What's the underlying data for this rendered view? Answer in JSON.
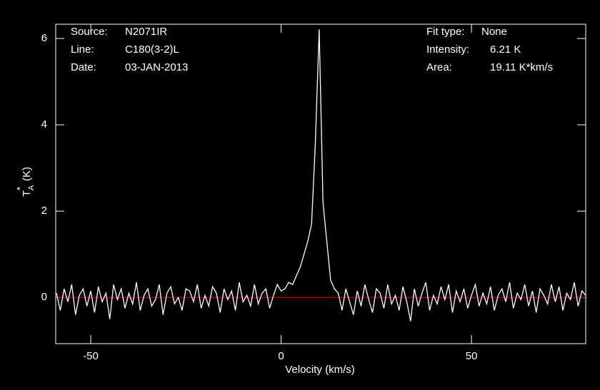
{
  "chart_data": {
    "type": "line",
    "xlabel": "Velocity (km/s)",
    "ylabel": {
      "main": "T",
      "sub": "A",
      "sup": "*",
      "unit": "(K)"
    },
    "annotations_left": [
      {
        "label": "Source:",
        "value": "N2071IR"
      },
      {
        "label": "Line:",
        "value": "C180(3-2)L"
      },
      {
        "label": "Date:",
        "value": "03-JAN-2013"
      }
    ],
    "annotations_right": [
      {
        "label": "Fit type:",
        "value": "None"
      },
      {
        "label": "Intensity:",
        "value": "6.21 K"
      },
      {
        "label": "Area:",
        "value": "19.11 K*km/s"
      }
    ],
    "xlim": [
      -59.2,
      80
    ],
    "ylim": [
      -1.07,
      6.33
    ],
    "xticks": [
      -50,
      0,
      50
    ],
    "yticks": [
      0,
      2,
      4,
      6
    ],
    "baseline": {
      "value": 0,
      "color": "#d00000"
    },
    "series": [
      {
        "color": "#ffffff",
        "x": [
          -59,
          -58,
          -57,
          -56,
          -55,
          -54,
          -53,
          -52,
          -51,
          -50,
          -49,
          -48,
          -47,
          -46,
          -45,
          -44,
          -43,
          -42,
          -41,
          -40,
          -39,
          -38,
          -37,
          -36,
          -35,
          -34,
          -33,
          -32,
          -31,
          -30,
          -29,
          -28,
          -27,
          -26,
          -25,
          -24,
          -23,
          -22,
          -21,
          -20,
          -19,
          -18,
          -17,
          -16,
          -15,
          -14,
          -13,
          -12,
          -11,
          -10,
          -9,
          -8,
          -7,
          -6,
          -5,
          -4,
          -3,
          -2,
          -1,
          0,
          1,
          2,
          3,
          4,
          5,
          6,
          7,
          8,
          9,
          10,
          11,
          12,
          13,
          14,
          15,
          16,
          17,
          18,
          19,
          20,
          21,
          22,
          23,
          24,
          25,
          26,
          27,
          28,
          29,
          30,
          31,
          32,
          33,
          34,
          35,
          36,
          37,
          38,
          39,
          40,
          41,
          42,
          43,
          44,
          45,
          46,
          47,
          48,
          49,
          50,
          51,
          52,
          53,
          54,
          55,
          56,
          57,
          58,
          59,
          60,
          61,
          62,
          63,
          64,
          65,
          66,
          67,
          68,
          69,
          70,
          71,
          72,
          73,
          74,
          75,
          76,
          77,
          78,
          79,
          80
        ],
        "values": [
          0.1,
          -0.3,
          0.2,
          -0.1,
          0.3,
          -0.4,
          0.05,
          0.2,
          -0.2,
          0.15,
          -0.35,
          0.25,
          -0.1,
          0.1,
          -0.5,
          0.3,
          -0.05,
          0.2,
          -0.25,
          0.1,
          -0.15,
          0.35,
          -0.3,
          0.05,
          0.2,
          -0.2,
          -0.05,
          0.3,
          -0.4,
          0.1,
          0.25,
          -0.15,
          0.0,
          -0.3,
          0.2,
          0.15,
          -0.1,
          0.3,
          -0.25,
          0.05,
          -0.2,
          0.25,
          0.1,
          -0.35,
          0.2,
          -0.05,
          0.15,
          -0.3,
          0.35,
          -0.1,
          0.05,
          -0.2,
          0.3,
          -0.15,
          0.1,
          0.2,
          -0.25,
          0.05,
          0.3,
          0.15,
          0.2,
          0.35,
          0.3,
          0.5,
          0.7,
          1.0,
          1.3,
          1.7,
          3.6,
          6.21,
          2.2,
          1.3,
          0.4,
          0.2,
          0.1,
          -0.3,
          0.2,
          -0.1,
          -0.4,
          0.15,
          -0.2,
          0.3,
          -0.05,
          -0.35,
          0.2,
          0.1,
          -0.25,
          0.3,
          -0.15,
          0.05,
          -0.3,
          0.25,
          -0.1,
          -0.55,
          0.2,
          -0.2,
          0.1,
          0.35,
          -0.3,
          0.05,
          -0.15,
          0.25,
          -0.05,
          0.3,
          -0.35,
          0.15,
          -0.1,
          0.2,
          -0.25,
          0.05,
          0.3,
          -0.2,
          0.1,
          -0.15,
          0.25,
          -0.3,
          0.05,
          0.2,
          -0.1,
          0.35,
          -0.25,
          0.1,
          -0.05,
          0.3,
          -0.2,
          0.15,
          -0.35,
          0.2,
          0.05,
          -0.15,
          0.3,
          -0.1,
          0.25,
          -0.3,
          0.1,
          -0.05,
          0.35,
          -0.2,
          0.15,
          0.05
        ]
      }
    ]
  }
}
